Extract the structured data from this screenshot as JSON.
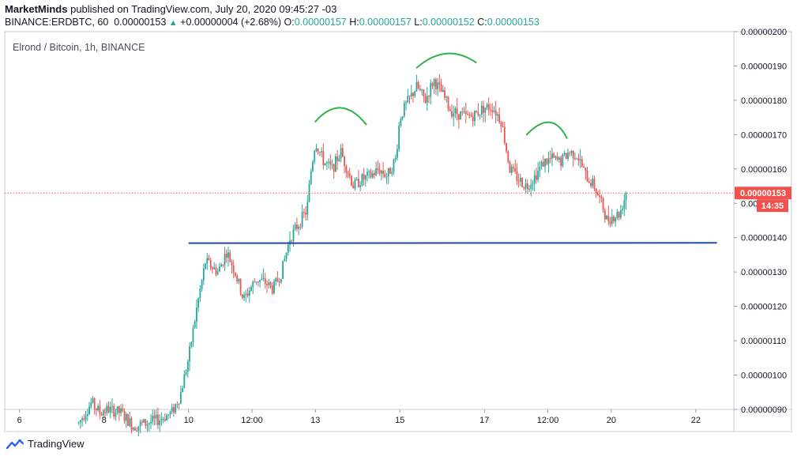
{
  "header": {
    "author": "MarketMinds",
    "published_text": "published on TradingView.com, July 20, 2020 09:45:27 -03",
    "symbol": "BINANCE:ERDBTC, 60",
    "last": "0.00000153",
    "change": "+0.00000004 (+2.68%)",
    "o_label": "O:",
    "o_value": "0.00000157",
    "h_label": "H:",
    "h_value": "0.00000157",
    "l_label": "L:",
    "l_value": "0.00000152",
    "c_label": "C:",
    "c_value": "0.00000153"
  },
  "footer": {
    "brand": "TradingView"
  },
  "chart_data": {
    "type": "candlestick",
    "title": "Elrond / Bitcoin, 1h, BINANCE",
    "y_ticks": [
      "0.00000200",
      "0.00000190",
      "0.00000180",
      "0.00000170",
      "0.00000160",
      "0.00000150",
      "0.00000140",
      "0.00000130",
      "0.00000120",
      "0.00000110",
      "0.00000100",
      "0.00000090"
    ],
    "y_tick_values": [
      2.0,
      1.9,
      1.8,
      1.7,
      1.6,
      1.5,
      1.4,
      1.3,
      1.2,
      1.1,
      1.0,
      0.9
    ],
    "ylim": [
      0.8999,
      2.0
    ],
    "x_ticks": [
      "6",
      "8",
      "10",
      "12:00",
      "13",
      "15",
      "17",
      "12:00",
      "20",
      "22"
    ],
    "x_tick_positions": [
      4,
      6,
      8,
      9.5,
      11,
      13,
      15,
      16.5,
      18,
      20
    ],
    "xlim": [
      3.65,
      20.9
    ],
    "last_price_label": "0.00000153",
    "last_price_value": 1.53,
    "countdown": "14:35",
    "colors": {
      "up": "#26a69a",
      "down": "#ef5350",
      "support": "#1f4e9a",
      "pattern": "#2db14b",
      "price_line": "#ef5350"
    },
    "price_path": [
      [
        5.4,
        0.86
      ],
      [
        5.7,
        0.92
      ],
      [
        5.9,
        0.89
      ],
      [
        6.1,
        0.9
      ],
      [
        6.4,
        0.89
      ],
      [
        6.7,
        0.85
      ],
      [
        7.0,
        0.86
      ],
      [
        7.3,
        0.87
      ],
      [
        7.6,
        0.89
      ],
      [
        7.8,
        0.94
      ],
      [
        8.0,
        1.05
      ],
      [
        8.2,
        1.2
      ],
      [
        8.4,
        1.33
      ],
      [
        8.7,
        1.3
      ],
      [
        8.9,
        1.36
      ],
      [
        9.1,
        1.3
      ],
      [
        9.3,
        1.22
      ],
      [
        9.6,
        1.28
      ],
      [
        9.8,
        1.27
      ],
      [
        10.0,
        1.25
      ],
      [
        10.2,
        1.3
      ],
      [
        10.4,
        1.4
      ],
      [
        10.6,
        1.44
      ],
      [
        10.8,
        1.48
      ],
      [
        10.9,
        1.6
      ],
      [
        11.0,
        1.68
      ],
      [
        11.2,
        1.62
      ],
      [
        11.4,
        1.6
      ],
      [
        11.6,
        1.65
      ],
      [
        11.9,
        1.55
      ],
      [
        12.1,
        1.57
      ],
      [
        12.3,
        1.58
      ],
      [
        12.5,
        1.6
      ],
      [
        12.7,
        1.58
      ],
      [
        12.9,
        1.63
      ],
      [
        13.0,
        1.75
      ],
      [
        13.2,
        1.8
      ],
      [
        13.4,
        1.84
      ],
      [
        13.6,
        1.8
      ],
      [
        13.8,
        1.86
      ],
      [
        14.0,
        1.82
      ],
      [
        14.2,
        1.77
      ],
      [
        14.4,
        1.76
      ],
      [
        14.6,
        1.75
      ],
      [
        14.8,
        1.76
      ],
      [
        15.0,
        1.78
      ],
      [
        15.2,
        1.78
      ],
      [
        15.4,
        1.74
      ],
      [
        15.6,
        1.6
      ],
      [
        15.8,
        1.57
      ],
      [
        16.0,
        1.55
      ],
      [
        16.2,
        1.58
      ],
      [
        16.4,
        1.62
      ],
      [
        16.6,
        1.63
      ],
      [
        16.8,
        1.62
      ],
      [
        17.0,
        1.65
      ],
      [
        17.2,
        1.64
      ],
      [
        17.4,
        1.58
      ],
      [
        17.6,
        1.55
      ],
      [
        17.8,
        1.49
      ],
      [
        17.9,
        1.45
      ],
      [
        18.0,
        1.46
      ],
      [
        18.2,
        1.47
      ],
      [
        18.35,
        1.53
      ]
    ],
    "support_line": {
      "x": [
        8.0,
        20.5
      ],
      "y": [
        1.384,
        1.385
      ]
    },
    "head_and_shoulders": [
      [
        [
          11.0,
          1.738
        ],
        [
          11.6,
          1.778
        ],
        [
          12.2,
          1.73
        ]
      ],
      [
        [
          13.4,
          1.895
        ],
        [
          14.1,
          1.936
        ],
        [
          14.8,
          1.91
        ]
      ],
      [
        [
          16.0,
          1.7
        ],
        [
          16.6,
          1.736
        ],
        [
          16.95,
          1.69
        ]
      ]
    ]
  }
}
